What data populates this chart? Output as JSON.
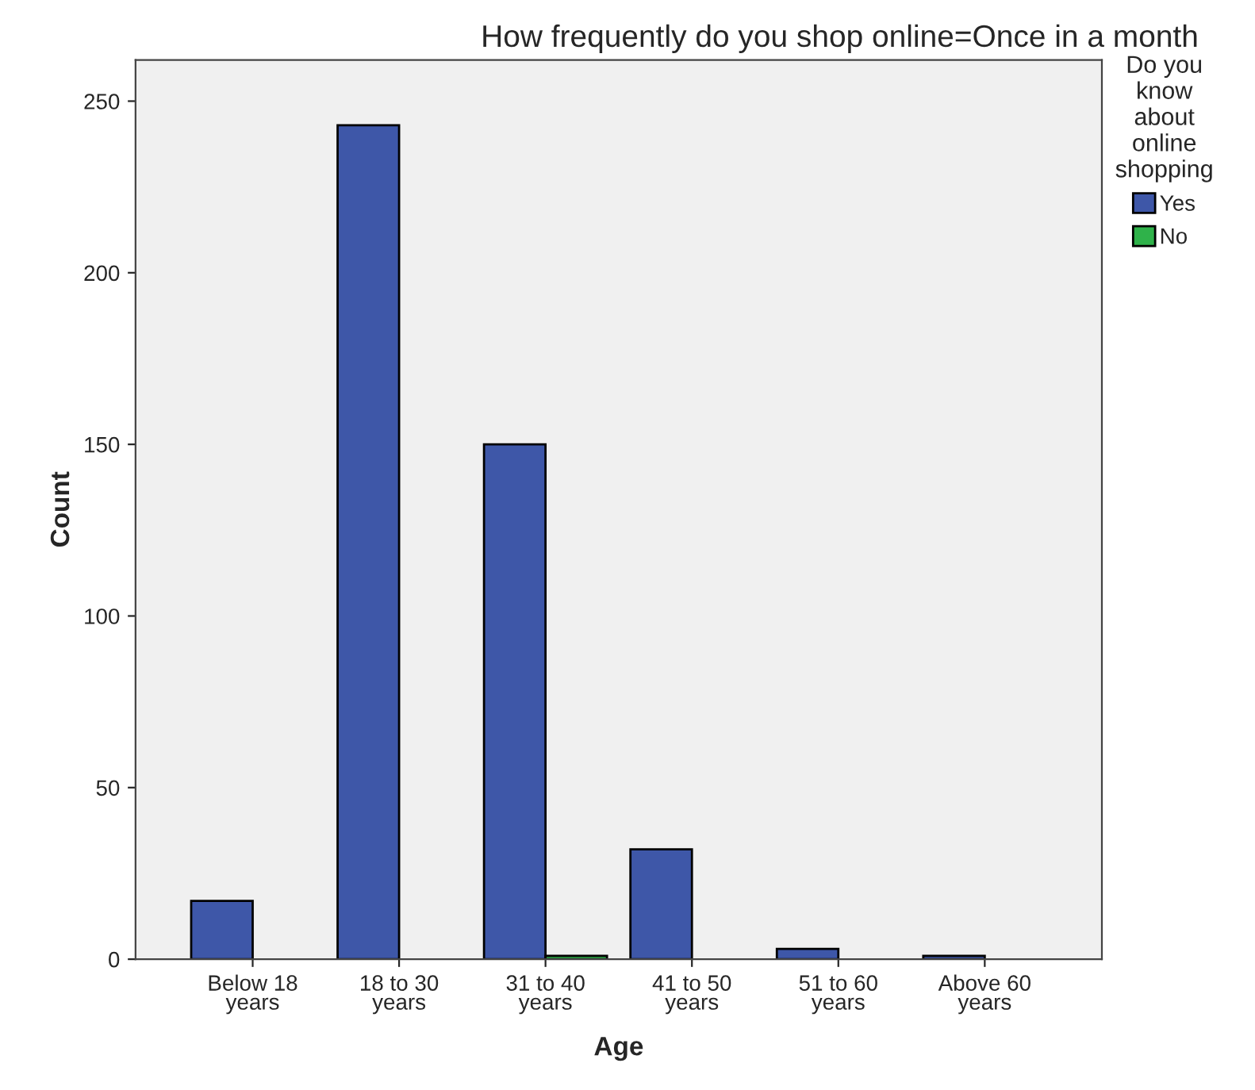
{
  "chart_data": {
    "type": "bar",
    "title": "How frequently do you shop online=Once in a month",
    "xlabel": "Age",
    "ylabel": "Count",
    "legend_title": "Do you\nknow\nabout\nonline\nshopping",
    "categories": [
      "Below 18\nyears",
      "18 to 30\nyears",
      "31 to 40\nyears",
      "41 to 50\nyears",
      "51 to 60\nyears",
      "Above 60\nyears"
    ],
    "series": [
      {
        "name": "Yes",
        "color": "#3e57a8",
        "values": [
          17,
          243,
          150,
          32,
          3,
          1
        ]
      },
      {
        "name": "No",
        "color": "#2fb24a",
        "values": [
          null,
          null,
          1,
          null,
          null,
          null
        ]
      }
    ],
    "ylim": [
      0,
      262
    ],
    "yticks": [
      0,
      50,
      100,
      150,
      200,
      250
    ],
    "grid": false,
    "legend": "right"
  }
}
